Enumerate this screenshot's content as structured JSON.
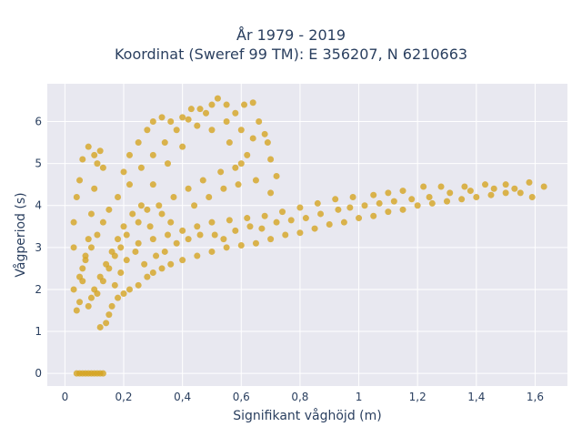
{
  "chart_data": {
    "type": "scatter",
    "title_line1": "År 1979 - 2019",
    "title_line2": "Koordinat (Sweref 99 TM): E 356207, N 6210663",
    "xlabel": "Signifikant våghöjd (m)",
    "ylabel": "Vågperiod (s)",
    "xlim": [
      -0.06,
      1.71
    ],
    "ylim": [
      -0.3,
      6.9
    ],
    "xticks": [
      0,
      0.2,
      0.4,
      0.6,
      0.8,
      1,
      1.2,
      1.4,
      1.6
    ],
    "xtick_labels": [
      "0",
      "0,2",
      "0,4",
      "0,6",
      "0,8",
      "1",
      "1,2",
      "1,4",
      "1,6"
    ],
    "yticks": [
      0,
      1,
      2,
      3,
      4,
      5,
      6
    ],
    "ytick_labels": [
      "0",
      "1",
      "2",
      "3",
      "4",
      "5",
      "6"
    ],
    "grid": true,
    "legend": "none",
    "colors": {
      "marker": "#d4a422",
      "plot_bg": "#e8e8f0",
      "grid": "#ffffff"
    },
    "series": [
      {
        "values_description_free": true,
        "points": [
          [
            0.04,
            0
          ],
          [
            0.05,
            0
          ],
          [
            0.06,
            0
          ],
          [
            0.07,
            0
          ],
          [
            0.08,
            0
          ],
          [
            0.09,
            0
          ],
          [
            0.1,
            0
          ],
          [
            0.11,
            0
          ],
          [
            0.12,
            0
          ],
          [
            0.13,
            0
          ],
          [
            0.04,
            1.5
          ],
          [
            0.05,
            1.7
          ],
          [
            0.06,
            2.2
          ],
          [
            0.07,
            2.7
          ],
          [
            0.08,
            3.2
          ],
          [
            0.09,
            3.8
          ],
          [
            0.1,
            4.4
          ],
          [
            0.11,
            5.0
          ],
          [
            0.12,
            5.3
          ],
          [
            0.13,
            4.9
          ],
          [
            0.03,
            2.0
          ],
          [
            0.03,
            3.0
          ],
          [
            0.03,
            3.6
          ],
          [
            0.04,
            4.2
          ],
          [
            0.05,
            4.6
          ],
          [
            0.06,
            5.1
          ],
          [
            0.08,
            5.4
          ],
          [
            0.1,
            5.2
          ],
          [
            0.12,
            1.1
          ],
          [
            0.14,
            1.2
          ],
          [
            0.15,
            1.4
          ],
          [
            0.16,
            1.6
          ],
          [
            0.18,
            1.8
          ],
          [
            0.2,
            1.9
          ],
          [
            0.22,
            2.0
          ],
          [
            0.25,
            2.1
          ],
          [
            0.28,
            2.3
          ],
          [
            0.3,
            2.4
          ],
          [
            0.33,
            2.5
          ],
          [
            0.36,
            2.6
          ],
          [
            0.4,
            2.7
          ],
          [
            0.45,
            2.8
          ],
          [
            0.5,
            2.9
          ],
          [
            0.55,
            3.0
          ],
          [
            0.6,
            3.05
          ],
          [
            0.65,
            3.1
          ],
          [
            0.7,
            3.2
          ],
          [
            0.75,
            3.3
          ],
          [
            0.8,
            3.35
          ],
          [
            0.85,
            3.45
          ],
          [
            0.9,
            3.55
          ],
          [
            0.95,
            3.6
          ],
          [
            1.0,
            3.7
          ],
          [
            1.05,
            3.75
          ],
          [
            1.1,
            3.85
          ],
          [
            1.15,
            3.9
          ],
          [
            1.2,
            4.0
          ],
          [
            1.25,
            4.05
          ],
          [
            1.3,
            4.1
          ],
          [
            1.35,
            4.15
          ],
          [
            1.4,
            4.2
          ],
          [
            1.45,
            4.25
          ],
          [
            1.5,
            4.3
          ],
          [
            1.55,
            4.3
          ],
          [
            1.59,
            4.2
          ],
          [
            1.63,
            4.45
          ],
          [
            1.58,
            4.55
          ],
          [
            1.5,
            4.5
          ],
          [
            1.43,
            4.5
          ],
          [
            1.36,
            4.45
          ],
          [
            1.28,
            4.45
          ],
          [
            1.22,
            4.45
          ],
          [
            1.15,
            4.35
          ],
          [
            1.1,
            4.3
          ],
          [
            1.05,
            4.25
          ],
          [
            0.98,
            4.2
          ],
          [
            0.92,
            4.15
          ],
          [
            0.86,
            4.05
          ],
          [
            0.8,
            3.95
          ],
          [
            0.74,
            3.85
          ],
          [
            0.68,
            3.75
          ],
          [
            0.62,
            3.7
          ],
          [
            0.56,
            3.65
          ],
          [
            0.5,
            3.6
          ],
          [
            0.45,
            3.5
          ],
          [
            0.4,
            3.4
          ],
          [
            0.35,
            3.3
          ],
          [
            0.3,
            3.2
          ],
          [
            0.25,
            3.1
          ],
          [
            0.2,
            4.8
          ],
          [
            0.22,
            5.2
          ],
          [
            0.25,
            5.5
          ],
          [
            0.28,
            5.8
          ],
          [
            0.3,
            6.0
          ],
          [
            0.33,
            6.1
          ],
          [
            0.36,
            6.0
          ],
          [
            0.4,
            6.1
          ],
          [
            0.43,
            6.3
          ],
          [
            0.46,
            6.3
          ],
          [
            0.5,
            6.4
          ],
          [
            0.52,
            6.55
          ],
          [
            0.55,
            6.4
          ],
          [
            0.58,
            6.2
          ],
          [
            0.61,
            6.4
          ],
          [
            0.64,
            6.45
          ],
          [
            0.66,
            6.0
          ],
          [
            0.68,
            5.7
          ],
          [
            0.69,
            5.5
          ],
          [
            0.7,
            5.1
          ],
          [
            0.72,
            4.7
          ],
          [
            0.7,
            4.3
          ],
          [
            0.65,
            4.6
          ],
          [
            0.6,
            5.0
          ],
          [
            0.56,
            5.5
          ],
          [
            0.5,
            5.8
          ],
          [
            0.45,
            5.9
          ],
          [
            0.4,
            5.4
          ],
          [
            0.35,
            5.0
          ],
          [
            0.3,
            4.5
          ],
          [
            0.26,
            4.0
          ],
          [
            0.23,
            3.8
          ],
          [
            0.2,
            3.5
          ],
          [
            0.18,
            3.2
          ],
          [
            0.16,
            2.9
          ],
          [
            0.14,
            2.6
          ],
          [
            0.12,
            2.3
          ],
          [
            0.1,
            2.0
          ],
          [
            0.09,
            1.8
          ],
          [
            0.08,
            1.6
          ],
          [
            0.28,
            3.9
          ],
          [
            0.32,
            4.0
          ],
          [
            0.37,
            4.2
          ],
          [
            0.42,
            4.4
          ],
          [
            0.47,
            4.6
          ],
          [
            0.53,
            4.8
          ],
          [
            0.58,
            4.9
          ],
          [
            0.62,
            5.2
          ],
          [
            0.64,
            5.6
          ],
          [
            0.6,
            5.8
          ],
          [
            0.55,
            6.0
          ],
          [
            0.48,
            6.2
          ],
          [
            0.42,
            6.05
          ],
          [
            0.38,
            5.8
          ],
          [
            0.34,
            5.5
          ],
          [
            0.3,
            5.2
          ],
          [
            0.26,
            4.9
          ],
          [
            0.22,
            4.5
          ],
          [
            0.18,
            4.2
          ],
          [
            0.15,
            3.9
          ],
          [
            0.13,
            3.6
          ],
          [
            0.11,
            3.3
          ],
          [
            0.09,
            3.0
          ],
          [
            0.07,
            2.8
          ],
          [
            0.06,
            2.5
          ],
          [
            0.05,
            2.3
          ],
          [
            0.17,
            2.1
          ],
          [
            0.19,
            2.4
          ],
          [
            0.21,
            2.7
          ],
          [
            0.24,
            2.9
          ],
          [
            0.27,
            2.6
          ],
          [
            0.31,
            2.8
          ],
          [
            0.34,
            2.9
          ],
          [
            0.38,
            3.1
          ],
          [
            0.42,
            3.2
          ],
          [
            0.46,
            3.3
          ],
          [
            0.51,
            3.3
          ],
          [
            0.54,
            3.2
          ],
          [
            0.58,
            3.4
          ],
          [
            0.63,
            3.5
          ],
          [
            0.67,
            3.45
          ],
          [
            0.72,
            3.6
          ],
          [
            0.77,
            3.65
          ],
          [
            0.82,
            3.7
          ],
          [
            0.87,
            3.8
          ],
          [
            0.93,
            3.9
          ],
          [
            0.97,
            3.95
          ],
          [
            1.02,
            4.0
          ],
          [
            1.07,
            4.05
          ],
          [
            1.12,
            4.1
          ],
          [
            1.18,
            4.15
          ],
          [
            1.24,
            4.2
          ],
          [
            1.31,
            4.3
          ],
          [
            1.38,
            4.35
          ],
          [
            1.46,
            4.4
          ],
          [
            1.53,
            4.4
          ],
          [
            0.44,
            4.0
          ],
          [
            0.49,
            4.2
          ],
          [
            0.54,
            4.4
          ],
          [
            0.59,
            4.5
          ],
          [
            0.36,
            3.6
          ],
          [
            0.33,
            3.8
          ],
          [
            0.29,
            3.5
          ],
          [
            0.25,
            3.6
          ],
          [
            0.21,
            3.3
          ],
          [
            0.19,
            3.0
          ],
          [
            0.17,
            2.8
          ],
          [
            0.15,
            2.5
          ],
          [
            0.13,
            2.2
          ],
          [
            0.11,
            1.9
          ]
        ]
      }
    ]
  }
}
